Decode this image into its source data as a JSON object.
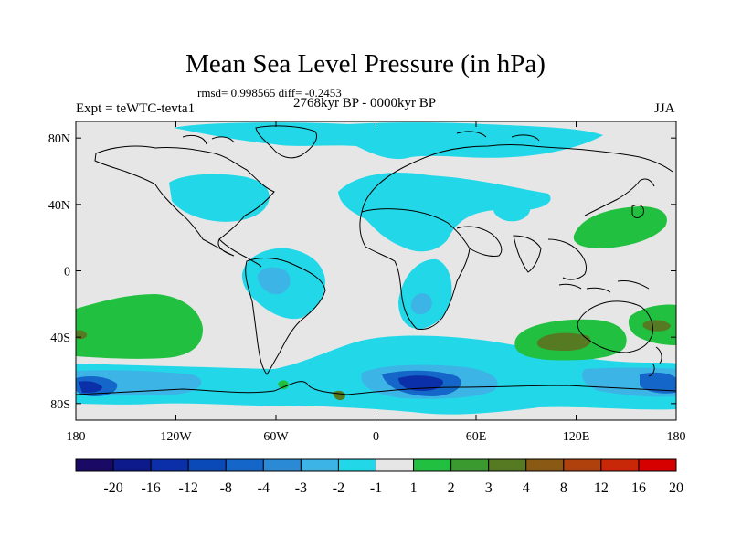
{
  "title": "Mean Sea Level Pressure (in hPa)",
  "stats": "rmsd= 0.998565 diff= -0.2453",
  "left_label": "Expt = teWTC-tevta1",
  "center_label": "2768kyr BP - 0000kyr BP",
  "right_label": "JJA",
  "lat_labels": [
    "80N",
    "40N",
    "0",
    "40S",
    "80S"
  ],
  "lat_values": [
    80,
    40,
    0,
    -40,
    -80
  ],
  "lon_labels": [
    "180",
    "120W",
    "60W",
    "0",
    "60E",
    "120E",
    "180"
  ],
  "lon_values": [
    -180,
    -120,
    -60,
    0,
    60,
    120,
    180
  ],
  "colorbar": {
    "labels": [
      "-20",
      "-16",
      "-12",
      "-8",
      "-4",
      "-3",
      "-2",
      "-1",
      "1",
      "2",
      "3",
      "4",
      "8",
      "12",
      "16",
      "20"
    ],
    "colors": [
      "#1a0a66",
      "#0d1a8c",
      "#0a2fa8",
      "#0a4ab8",
      "#1466c8",
      "#2a8ad6",
      "#3cb4e6",
      "#22d8e8",
      "#e6e6e6",
      "#22c040",
      "#3a9a30",
      "#557a22",
      "#8a5a14",
      "#b0400c",
      "#c82808",
      "#d60000"
    ]
  },
  "colors": {
    "background": "#e6e6e6",
    "light_cyan": "#22d8e8",
    "cyan": "#3cb4e6",
    "blue": "#1466c8",
    "dark_blue": "#0a2fa8",
    "green": "#22c040",
    "olive": "#557a22"
  },
  "chart_data": {
    "type": "heatmap",
    "title": "Mean Sea Level Pressure (in hPa)",
    "subtitle": "rmsd= 0.998565 diff= -0.2453",
    "field": "MSLP difference 2768kyr BP - 0000kyr BP, season JJA",
    "xlim": [
      -180,
      180
    ],
    "ylim": [
      -90,
      90
    ],
    "levels": [
      -20,
      -16,
      -12,
      -8,
      -4,
      -3,
      -2,
      -1,
      1,
      2,
      3,
      4,
      8,
      12,
      16,
      20
    ],
    "regions": [
      {
        "name": "north-atlantic-europe-low",
        "level": "-2 to -1"
      },
      {
        "name": "north-america-low",
        "level": "-2 to -1"
      },
      {
        "name": "sahara-middle-east-low",
        "level": "-2 to -1"
      },
      {
        "name": "south-america-low",
        "level": "-3 to -2"
      },
      {
        "name": "southern-africa-low",
        "level": "-3 to -2"
      },
      {
        "name": "southern-ocean-low",
        "level": "-4 to -8"
      },
      {
        "name": "north-pacific-high",
        "level": "1 to 2"
      },
      {
        "name": "south-pacific-high",
        "level": "1 to 2"
      },
      {
        "name": "south-indian-ocean-high",
        "level": "1 to 3"
      },
      {
        "name": "tasman-sea-high",
        "level": "2 to 3"
      }
    ]
  }
}
